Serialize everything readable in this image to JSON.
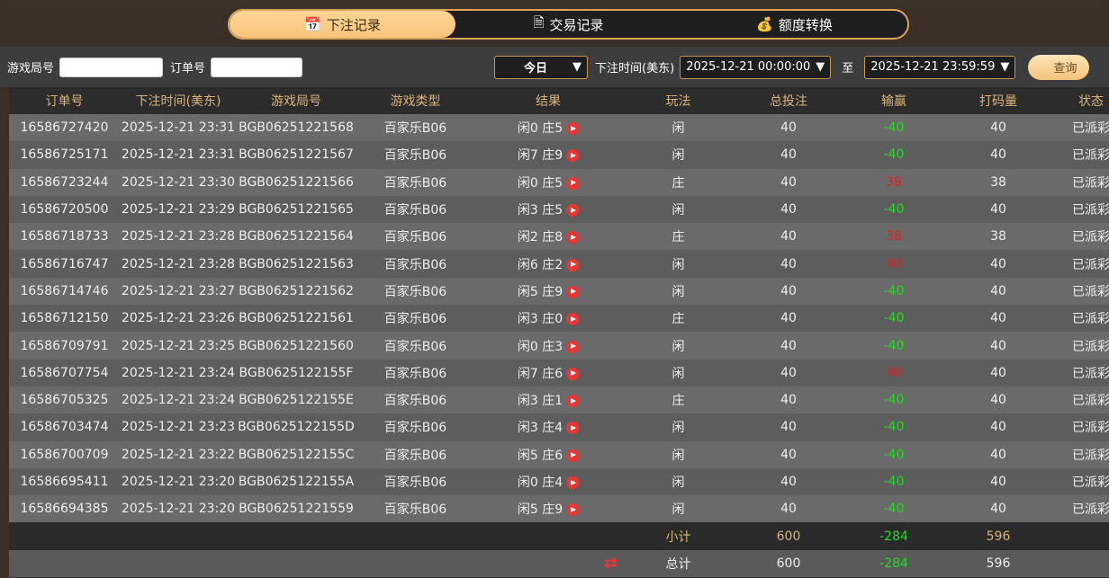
{
  "tabs": [
    {
      "label": "下注记录",
      "icon": "calendar-icon",
      "active": true
    },
    {
      "label": "交易记录",
      "icon": "document-icon"
    },
    {
      "label": "额度转换",
      "icon": "coins-icon"
    }
  ],
  "filters": {
    "round_label": "游戏局号",
    "round_value": "",
    "order_label": "订单号",
    "order_value": "",
    "period": "今日",
    "time_label": "下注时间(美东)",
    "start": "2025-12-21 00:00:00",
    "to_label": "至",
    "end": "2025-12-21 23:59:59",
    "query_label": "查询"
  },
  "colors": {
    "accent": "#f7c47c",
    "win": "#22dd22",
    "lose": "#e02020",
    "header_text": "#d9b37a"
  },
  "columns": [
    "订单号",
    "下注时间(美东)",
    "游戏局号",
    "游戏类型",
    "结果",
    "玩法",
    "总投注",
    "输赢",
    "打码量",
    "状态"
  ],
  "rows": [
    [
      "16586727420",
      "2025-12-21 23:31",
      "BGB06251221568",
      "百家乐B06",
      "闲0 庄5",
      "闲",
      "40",
      "-40",
      "40",
      "已派彩"
    ],
    [
      "16586725171",
      "2025-12-21 23:31",
      "BGB06251221567",
      "百家乐B06",
      "闲7 庄9",
      "闲",
      "40",
      "-40",
      "40",
      "已派彩"
    ],
    [
      "16586723244",
      "2025-12-21 23:30",
      "BGB06251221566",
      "百家乐B06",
      "闲0 庄5",
      "庄",
      "40",
      "38",
      "38",
      "已派彩"
    ],
    [
      "16586720500",
      "2025-12-21 23:29",
      "BGB06251221565",
      "百家乐B06",
      "闲3 庄5",
      "闲",
      "40",
      "-40",
      "40",
      "已派彩"
    ],
    [
      "16586718733",
      "2025-12-21 23:28",
      "BGB06251221564",
      "百家乐B06",
      "闲2 庄8",
      "庄",
      "40",
      "38",
      "38",
      "已派彩"
    ],
    [
      "16586716747",
      "2025-12-21 23:28",
      "BGB06251221563",
      "百家乐B06",
      "闲6 庄2",
      "闲",
      "40",
      "40",
      "40",
      "已派彩"
    ],
    [
      "16586714746",
      "2025-12-21 23:27",
      "BGB06251221562",
      "百家乐B06",
      "闲5 庄9",
      "闲",
      "40",
      "-40",
      "40",
      "已派彩"
    ],
    [
      "16586712150",
      "2025-12-21 23:26",
      "BGB06251221561",
      "百家乐B06",
      "闲3 庄0",
      "庄",
      "40",
      "-40",
      "40",
      "已派彩"
    ],
    [
      "16586709791",
      "2025-12-21 23:25",
      "BGB06251221560",
      "百家乐B06",
      "闲0 庄3",
      "闲",
      "40",
      "-40",
      "40",
      "已派彩"
    ],
    [
      "16586707754",
      "2025-12-21 23:24",
      "BGB0625122155F",
      "百家乐B06",
      "闲7 庄6",
      "闲",
      "40",
      "40",
      "40",
      "已派彩"
    ],
    [
      "16586705325",
      "2025-12-21 23:24",
      "BGB0625122155E",
      "百家乐B06",
      "闲3 庄1",
      "庄",
      "40",
      "-40",
      "40",
      "已派彩"
    ],
    [
      "16586703474",
      "2025-12-21 23:23",
      "BGB0625122155D",
      "百家乐B06",
      "闲3 庄4",
      "闲",
      "40",
      "-40",
      "40",
      "已派彩"
    ],
    [
      "16586700709",
      "2025-12-21 23:22",
      "BGB0625122155C",
      "百家乐B06",
      "闲5 庄6",
      "闲",
      "40",
      "-40",
      "40",
      "已派彩"
    ],
    [
      "16586695411",
      "2025-12-21 23:20",
      "BGB0625122155A",
      "百家乐B06",
      "闲0 庄4",
      "闲",
      "40",
      "-40",
      "40",
      "已派彩"
    ],
    [
      "16586694385",
      "2025-12-21 23:20",
      "BGB06251221559",
      "百家乐B06",
      "闲5 庄9",
      "闲",
      "40",
      "-40",
      "40",
      "已派彩"
    ]
  ],
  "subtotal": {
    "label": "小计",
    "bet": "600",
    "winloss": "-284",
    "turnover": "596"
  },
  "total": {
    "label": "总计",
    "bet": "600",
    "winloss": "-284",
    "turnover": "596"
  }
}
